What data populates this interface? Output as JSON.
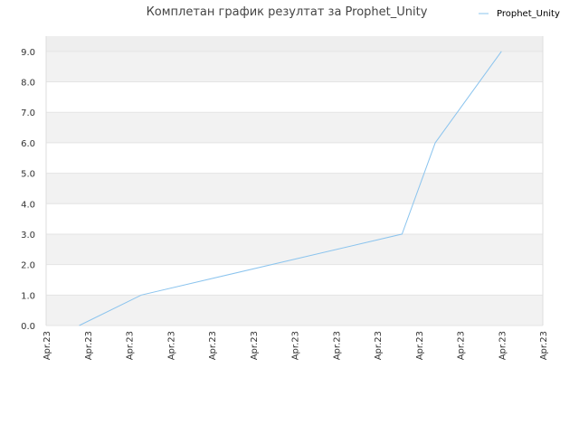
{
  "chart_data": {
    "type": "line",
    "title": "Комплетан график резултат за Prophet_Unity",
    "xlabel": "",
    "ylabel": "",
    "x_tick_labels": [
      "Apr.23",
      "Apr.23",
      "Apr.23",
      "Apr.23",
      "Apr.23",
      "Apr.23",
      "Apr.23",
      "Apr.23",
      "Apr.23",
      "Apr.23",
      "Apr.23",
      "Apr.23",
      "Apr.23"
    ],
    "y_tick_labels": [
      "0.0",
      "1.0",
      "2.0",
      "3.0",
      "4.0",
      "5.0",
      "6.0",
      "7.0",
      "8.0",
      "9.0"
    ],
    "ylim": [
      0,
      9.5
    ],
    "grid": "horizontal bands",
    "legend_position": "top-right",
    "series": [
      {
        "name": "Prophet_Unity",
        "color": "#8bc4ee",
        "points": [
          {
            "x": 0.8,
            "y": 0
          },
          {
            "x": 2.3,
            "y": 1
          },
          {
            "x": 8.6,
            "y": 3
          },
          {
            "x": 9.4,
            "y": 6
          },
          {
            "x": 11.0,
            "y": 9
          }
        ]
      }
    ],
    "colors": {
      "band_light": "#f2f2f2",
      "band_top": "#eeeeee",
      "grid_line": "#e4e4e4",
      "axis": "#dddddd"
    }
  }
}
